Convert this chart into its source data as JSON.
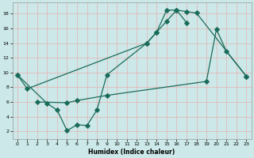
{
  "xlabel": "Humidex (Indice chaleur)",
  "bg_color": "#cce8e8",
  "grid_color_major": "#e8b0b0",
  "line_color": "#1a6b5a",
  "xlim": [
    -0.5,
    23.5
  ],
  "ylim": [
    1.0,
    19.5
  ],
  "yticks": [
    2,
    4,
    6,
    8,
    10,
    12,
    14,
    16,
    18
  ],
  "xticks": [
    0,
    1,
    2,
    3,
    4,
    5,
    6,
    7,
    8,
    9,
    10,
    11,
    12,
    13,
    14,
    15,
    16,
    17,
    18,
    19,
    20,
    21,
    22,
    23
  ],
  "curve1_x": [
    0,
    1,
    13,
    14,
    15,
    16,
    17,
    18,
    23
  ],
  "curve1_y": [
    9.7,
    7.8,
    14.0,
    15.5,
    18.5,
    18.5,
    18.3,
    18.1,
    9.5
  ],
  "curve2_x": [
    0,
    3,
    4,
    5,
    6,
    7,
    8,
    9,
    13,
    14,
    15,
    16,
    17
  ],
  "curve2_y": [
    9.7,
    5.8,
    4.9,
    2.1,
    2.9,
    2.8,
    4.9,
    9.7,
    14.0,
    15.5,
    17.0,
    18.5,
    16.8
  ],
  "curve3_x": [
    2,
    5,
    6,
    9,
    19,
    20,
    21,
    23
  ],
  "curve3_y": [
    6.0,
    5.9,
    6.2,
    6.9,
    8.8,
    15.9,
    12.9,
    9.5
  ]
}
